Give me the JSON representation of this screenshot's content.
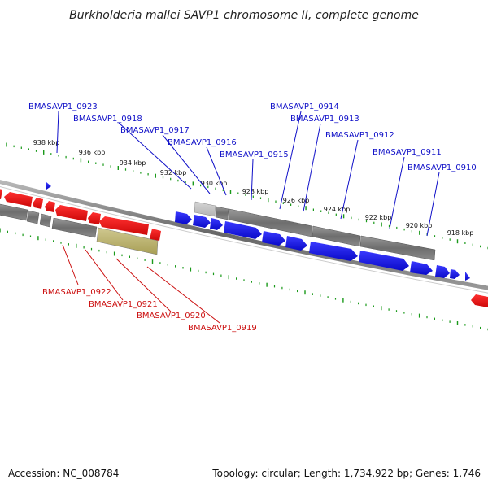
{
  "title": "Burkholderia mallei SAVP1 chromosome II, complete genome",
  "footer": {
    "accession": "Accession: NC_008784",
    "summary": "Topology: circular; Length: 1,734,922 bp; Genes: 1,746"
  },
  "ticks": [
    "938 kbp",
    "936 kbp",
    "934 kbp",
    "932 kbp",
    "930 kbp",
    "928 kbp",
    "926 kbp",
    "924 kbp",
    "922 kbp",
    "920 kbp",
    "918 kbp"
  ],
  "genes_top": [
    "BMASAVP1_0923",
    "BMASAVP1_0918",
    "BMASAVP1_0917",
    "BMASAVP1_0916",
    "BMASAVP1_0915",
    "BMASAVP1_0914",
    "BMASAVP1_0913",
    "BMASAVP1_0912",
    "BMASAVP1_0911",
    "BMASAVP1_0910"
  ],
  "genes_bottom": [
    "BMASAVP1_0922",
    "BMASAVP1_0921",
    "BMASAVP1_0920",
    "BMASAVP1_0919"
  ],
  "colors": {
    "forward_strand": "#1010e0",
    "reverse_strand": "#ee1010",
    "gene_grey": "#777777",
    "pseudo_olive": "#b8b070",
    "tick_green": "#1a9a1a"
  }
}
